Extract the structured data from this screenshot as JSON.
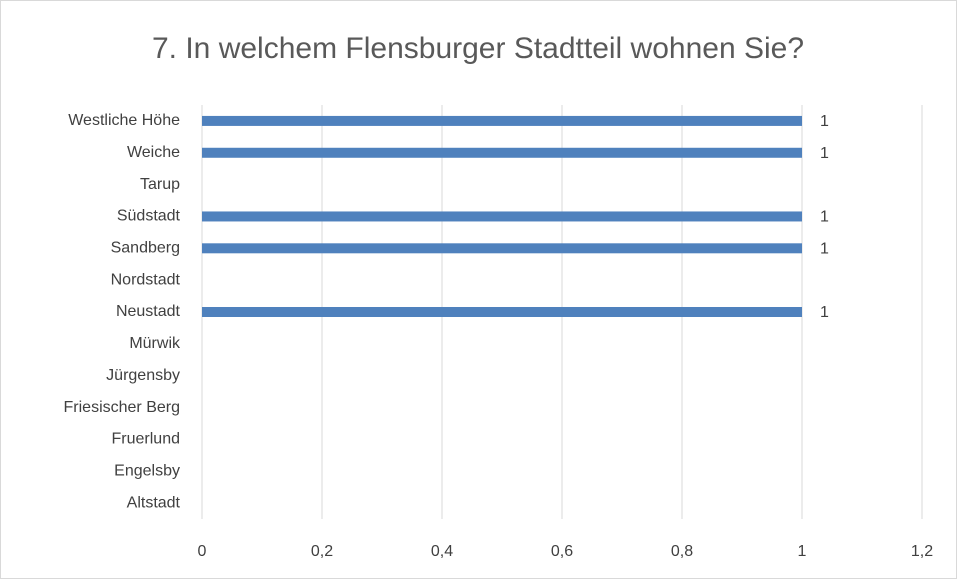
{
  "chart_data": {
    "type": "barh",
    "title": "7. In welchem Flensburger Stadtteil wohnen Sie?",
    "categories": [
      "Westliche Höhe",
      "Weiche",
      "Tarup",
      "Südstadt",
      "Sandberg",
      "Nordstadt",
      "Neustadt",
      "Mürwik",
      "Jürgensby",
      "Friesischer Berg",
      "Fruerlund",
      "Engelsby",
      "Altstadt"
    ],
    "values": [
      1,
      1,
      null,
      1,
      1,
      null,
      1,
      null,
      null,
      null,
      null,
      null,
      null
    ],
    "color": "#4f81bd",
    "xlim": [
      0,
      1.2
    ],
    "xticks": [
      0,
      {
        "value": 0.2,
        "label": "0,2"
      },
      {
        "value": 0.4,
        "label": "0,4"
      },
      {
        "value": 0.6,
        "label": "0,6"
      },
      {
        "value": 0.8,
        "label": "0,8"
      },
      1,
      {
        "value": 1.2,
        "label": "1,2"
      }
    ],
    "grid": true
  }
}
